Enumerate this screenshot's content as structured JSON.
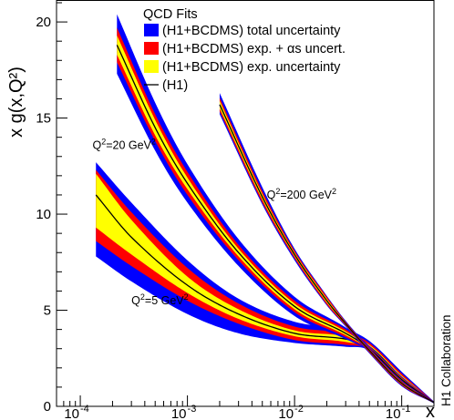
{
  "chart_data": {
    "type": "line",
    "xlabel": "x",
    "ylabel": "x g(x,Q²)",
    "x_scale": "log",
    "xlim": [
      6e-05,
      0.2
    ],
    "ylim": [
      0,
      21
    ],
    "grid": false,
    "legend_placement": "top-right",
    "collaboration_label": "H1 Collaboration",
    "legend": {
      "title": "QCD Fits",
      "entries": [
        {
          "label": "(H1+BCDMS) total uncertainty",
          "color": "#0000ff",
          "marker": "box"
        },
        {
          "label": "(H1+BCDMS) exp. + αs uncert.",
          "color": "#ff0000",
          "marker": "box"
        },
        {
          "label": "(H1+BCDMS) exp. uncertainty",
          "color": "#ffff00",
          "marker": "box"
        },
        {
          "label": "(H1)",
          "color": "#000000",
          "marker": "line"
        }
      ]
    },
    "x_ticks": [
      {
        "base": "10",
        "exp": "-4",
        "value": 0.0001
      },
      {
        "base": "10",
        "exp": "-3",
        "value": 0.001
      },
      {
        "base": "10",
        "exp": "-2",
        "value": 0.01
      },
      {
        "base": "10",
        "exp": "-1",
        "value": 0.1
      }
    ],
    "y_ticks": [
      0,
      5,
      10,
      15,
      20
    ],
    "bands": [
      {
        "name": "Q²=5 GeV²",
        "x": [
          0.00014,
          0.0003,
          0.001,
          0.003,
          0.01,
          0.03,
          0.05,
          0.1,
          0.2
        ],
        "central": [
          11.0,
          8.8,
          6.3,
          4.8,
          3.8,
          3.5,
          3.1,
          1.5,
          0.2
        ],
        "exp_low": [
          9.3,
          7.9,
          5.9,
          4.55,
          3.65,
          3.35,
          3.0,
          1.4,
          0.18
        ],
        "exp_high": [
          12.1,
          9.7,
          6.75,
          5.05,
          3.95,
          3.65,
          3.2,
          1.6,
          0.22
        ],
        "expas_low": [
          8.6,
          7.3,
          5.5,
          4.3,
          3.45,
          3.2,
          2.95,
          1.3,
          0.16
        ],
        "expas_high": [
          12.3,
          10.1,
          7.2,
          5.35,
          4.15,
          3.8,
          3.3,
          1.7,
          0.24
        ],
        "total_low": [
          7.8,
          6.5,
          4.8,
          3.8,
          3.3,
          3.1,
          2.9,
          1.2,
          0.15
        ],
        "total_high": [
          12.7,
          10.6,
          7.6,
          5.6,
          4.4,
          4.0,
          3.4,
          1.8,
          0.25
        ]
      },
      {
        "name": "Q²=20 GeV²",
        "x": [
          0.00022,
          0.0005,
          0.001,
          0.003,
          0.01,
          0.03,
          0.05,
          0.1,
          0.2
        ],
        "central": [
          18.8,
          14.5,
          11.6,
          8.0,
          5.2,
          3.8,
          3.0,
          1.4,
          0.2
        ],
        "exp_low": [
          18.3,
          14.1,
          11.3,
          7.8,
          5.05,
          3.7,
          2.95,
          1.35,
          0.18
        ],
        "exp_high": [
          19.3,
          14.9,
          11.9,
          8.2,
          5.35,
          3.9,
          3.05,
          1.45,
          0.22
        ],
        "expas_low": [
          17.9,
          13.8,
          11.0,
          7.6,
          4.9,
          3.6,
          2.9,
          1.3,
          0.16
        ],
        "expas_high": [
          19.7,
          15.2,
          12.2,
          8.4,
          5.5,
          4.0,
          3.1,
          1.5,
          0.24
        ],
        "total_low": [
          17.3,
          13.3,
          10.6,
          7.3,
          4.7,
          3.5,
          2.85,
          1.25,
          0.15
        ],
        "total_high": [
          20.4,
          15.8,
          12.6,
          8.7,
          5.7,
          4.1,
          3.15,
          1.55,
          0.25
        ]
      },
      {
        "name": "Q²=200 GeV²",
        "x": [
          0.002,
          0.005,
          0.01,
          0.02,
          0.03,
          0.05,
          0.1,
          0.2
        ],
        "central": [
          15.7,
          10.9,
          7.9,
          5.5,
          4.3,
          2.9,
          1.2,
          0.2
        ],
        "exp_low": [
          15.5,
          10.75,
          7.8,
          5.4,
          4.25,
          2.85,
          1.15,
          0.18
        ],
        "exp_high": [
          15.9,
          11.05,
          8.0,
          5.6,
          4.35,
          2.95,
          1.25,
          0.22
        ],
        "expas_low": [
          15.35,
          10.6,
          7.7,
          5.3,
          4.2,
          2.8,
          1.1,
          0.17
        ],
        "expas_high": [
          16.05,
          11.2,
          8.1,
          5.7,
          4.4,
          3.0,
          1.3,
          0.23
        ],
        "total_low": [
          15.2,
          10.5,
          7.6,
          5.25,
          4.15,
          2.75,
          1.05,
          0.16
        ],
        "total_high": [
          16.3,
          11.4,
          8.2,
          5.75,
          4.45,
          3.05,
          1.35,
          0.24
        ]
      }
    ],
    "annotations": [
      {
        "base": "Q",
        "sup": "2",
        "rest": "=20 GeV",
        "sup2": "2",
        "x": 0.00013,
        "y": 13.4
      },
      {
        "base": "Q",
        "sup": "2",
        "rest": "=200 GeV",
        "sup2": "2",
        "x": 0.0055,
        "y": 10.8
      },
      {
        "base": "Q",
        "sup": "2",
        "rest": "=5 GeV",
        "sup2": "2",
        "x": 0.0003,
        "y": 5.3
      }
    ],
    "colors": {
      "total": "#0000ff",
      "expas": "#ff0000",
      "exp": "#ffff00",
      "central": "#000000"
    }
  }
}
